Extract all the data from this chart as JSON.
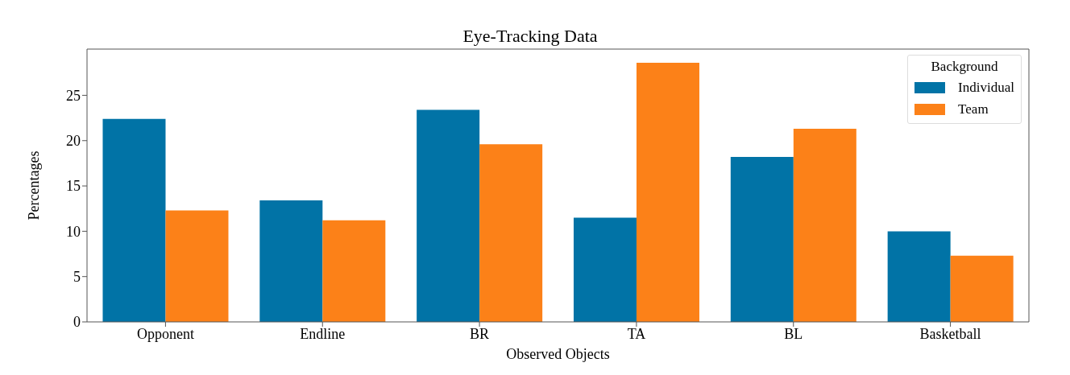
{
  "chart_data": {
    "type": "bar",
    "title": "Eye-Tracking Data",
    "xlabel": "Observed Objects",
    "ylabel": "Percentages",
    "legend_title": "Background",
    "categories": [
      "Opponent",
      "Endline",
      "BR",
      "TA",
      "BL",
      "Basketball"
    ],
    "series": [
      {
        "name": "Individual",
        "color": "#0173a6",
        "values": [
          22.4,
          13.4,
          23.4,
          11.5,
          18.2,
          10.0
        ]
      },
      {
        "name": "Team",
        "color": "#fc8118",
        "values": [
          12.3,
          11.2,
          19.6,
          28.6,
          21.3,
          7.3
        ]
      }
    ],
    "ylim": [
      0,
      30.1
    ],
    "yticks": [
      0,
      5,
      10,
      15,
      20,
      25
    ],
    "legend": "top right"
  }
}
